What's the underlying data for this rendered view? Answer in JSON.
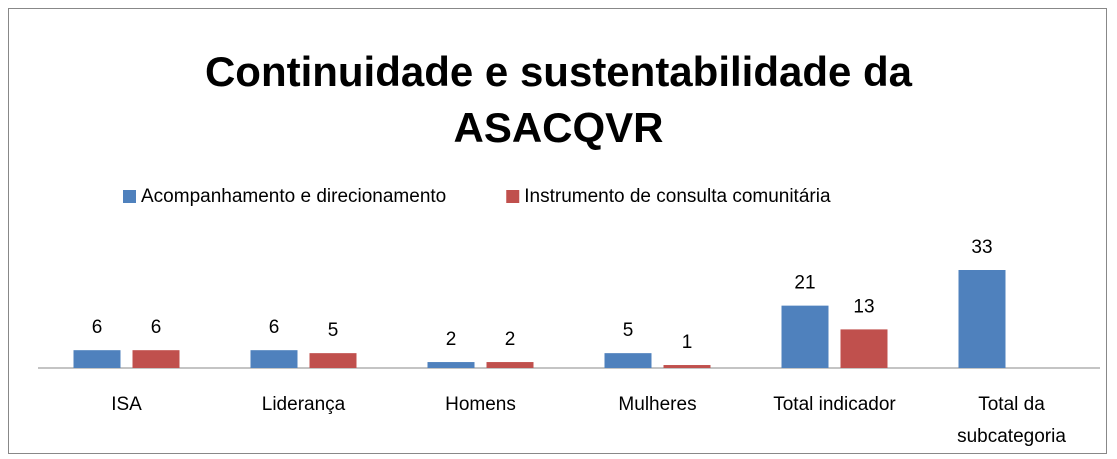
{
  "chart_data": {
    "type": "bar",
    "title": "Continuidade e sustentabilidade da ASACQVR",
    "categories": [
      "ISA",
      "Liderança",
      "Homens",
      "Mulheres",
      "Total indicador",
      "Total da subcategoria"
    ],
    "series": [
      {
        "name": "Acompanhamento e direcionamento",
        "color": "#4f81bd",
        "values": [
          6,
          6,
          2,
          5,
          21,
          33
        ]
      },
      {
        "name": "Instrumento de consulta comunitária",
        "color": "#c0504d",
        "values": [
          6,
          5,
          2,
          1,
          13,
          null
        ]
      }
    ],
    "legend": "top"
  }
}
